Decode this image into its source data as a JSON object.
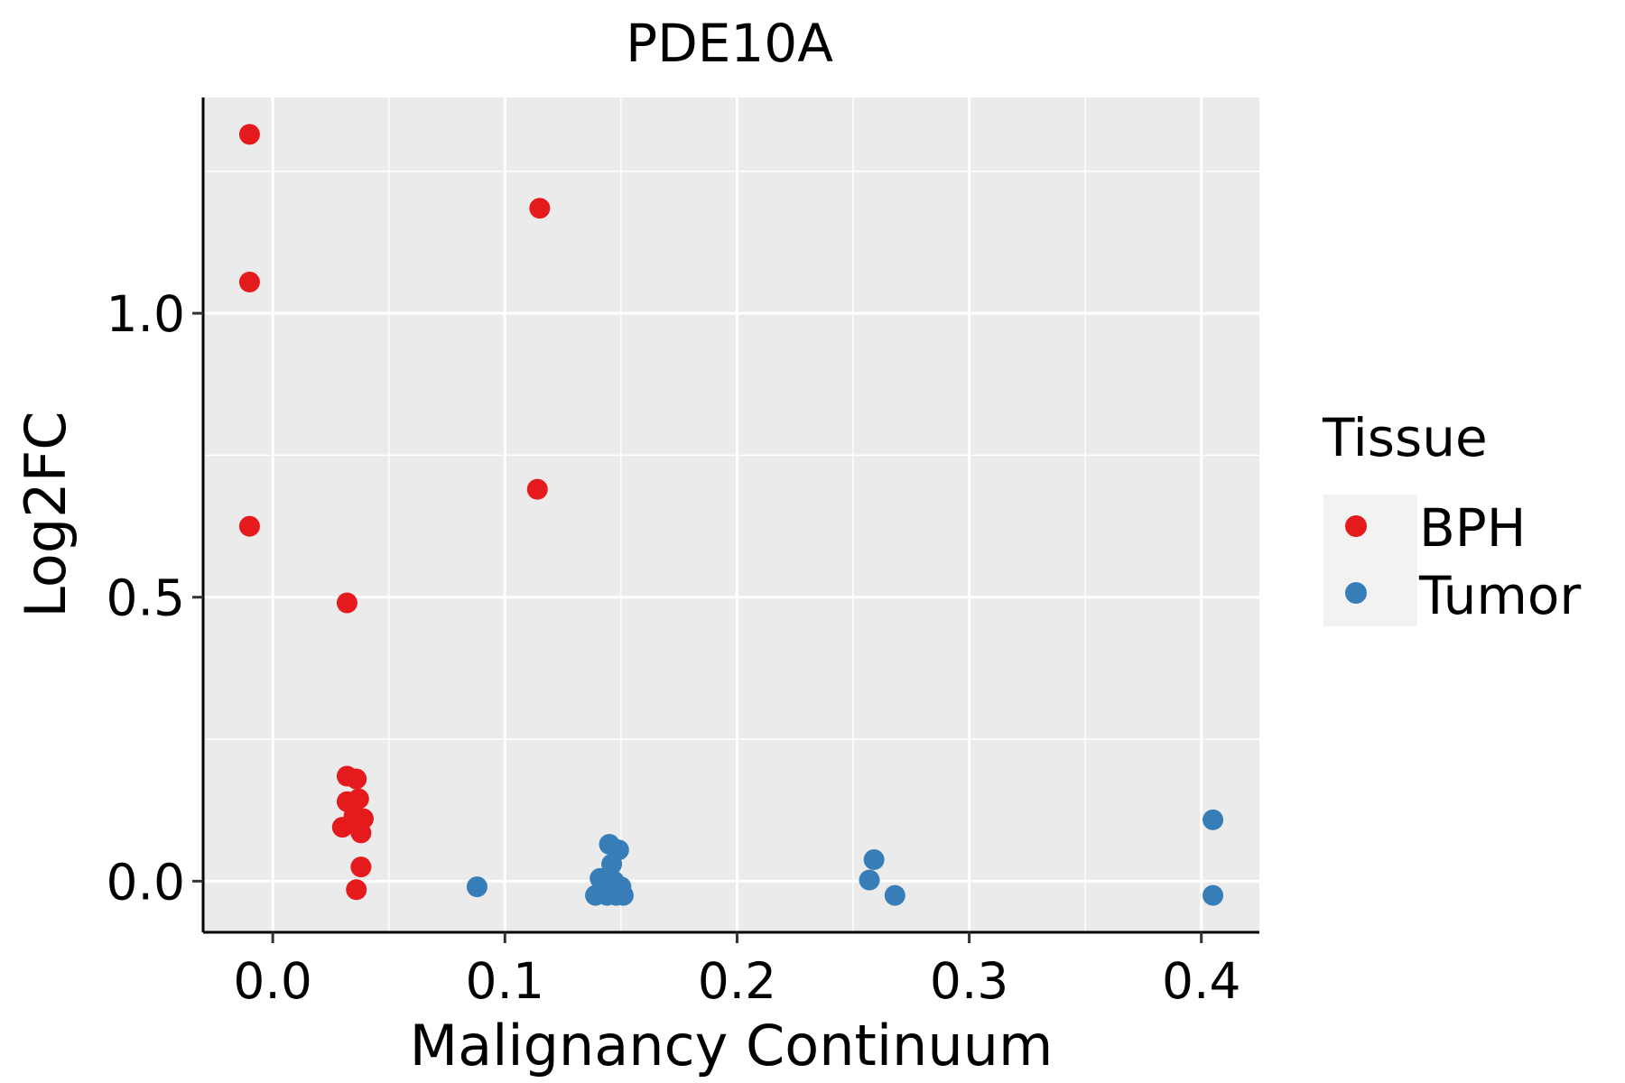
{
  "chart_data": {
    "type": "scatter",
    "title": "PDE10A",
    "xlabel": "Malignancy Continuum",
    "ylabel": "Log2FC",
    "xlim": [
      -0.03,
      0.425
    ],
    "ylim": [
      -0.09,
      1.38
    ],
    "xticks": [
      0.0,
      0.1,
      0.2,
      0.3,
      0.4
    ],
    "xtick_labels": [
      "0.0",
      "0.1",
      "0.2",
      "0.3",
      "0.4"
    ],
    "yticks": [
      0.0,
      0.5,
      1.0
    ],
    "ytick_labels": [
      "0.0",
      "0.5",
      "1.0"
    ],
    "grid": true,
    "legend": {
      "title": "Tissue",
      "placement": "right",
      "entries": [
        {
          "label": "BPH",
          "color": "#E41A1C"
        },
        {
          "label": "Tumor",
          "color": "#377EB8"
        }
      ]
    },
    "series": [
      {
        "name": "BPH",
        "color": "#E41A1C",
        "points": [
          {
            "x": -0.01,
            "y": 1.315
          },
          {
            "x": -0.01,
            "y": 1.055
          },
          {
            "x": -0.01,
            "y": 0.625
          },
          {
            "x": 0.115,
            "y": 1.185
          },
          {
            "x": 0.114,
            "y": 0.69
          },
          {
            "x": 0.032,
            "y": 0.49
          },
          {
            "x": 0.032,
            "y": 0.185
          },
          {
            "x": 0.036,
            "y": 0.18
          },
          {
            "x": 0.032,
            "y": 0.14
          },
          {
            "x": 0.037,
            "y": 0.145
          },
          {
            "x": 0.035,
            "y": 0.115
          },
          {
            "x": 0.039,
            "y": 0.11
          },
          {
            "x": 0.03,
            "y": 0.095
          },
          {
            "x": 0.038,
            "y": 0.085
          },
          {
            "x": 0.038,
            "y": 0.025
          },
          {
            "x": 0.036,
            "y": -0.015
          }
        ]
      },
      {
        "name": "Tumor",
        "color": "#377EB8",
        "points": [
          {
            "x": 0.088,
            "y": -0.01
          },
          {
            "x": 0.145,
            "y": 0.065
          },
          {
            "x": 0.149,
            "y": 0.055
          },
          {
            "x": 0.146,
            "y": 0.03
          },
          {
            "x": 0.141,
            "y": 0.005
          },
          {
            "x": 0.147,
            "y": 0.0
          },
          {
            "x": 0.15,
            "y": -0.01
          },
          {
            "x": 0.143,
            "y": -0.015
          },
          {
            "x": 0.139,
            "y": -0.025
          },
          {
            "x": 0.144,
            "y": -0.025
          },
          {
            "x": 0.148,
            "y": -0.025
          },
          {
            "x": 0.151,
            "y": -0.025
          },
          {
            "x": 0.259,
            "y": 0.038
          },
          {
            "x": 0.257,
            "y": 0.002
          },
          {
            "x": 0.268,
            "y": -0.025
          },
          {
            "x": 0.405,
            "y": 0.108
          },
          {
            "x": 0.405,
            "y": -0.025
          }
        ]
      }
    ]
  }
}
